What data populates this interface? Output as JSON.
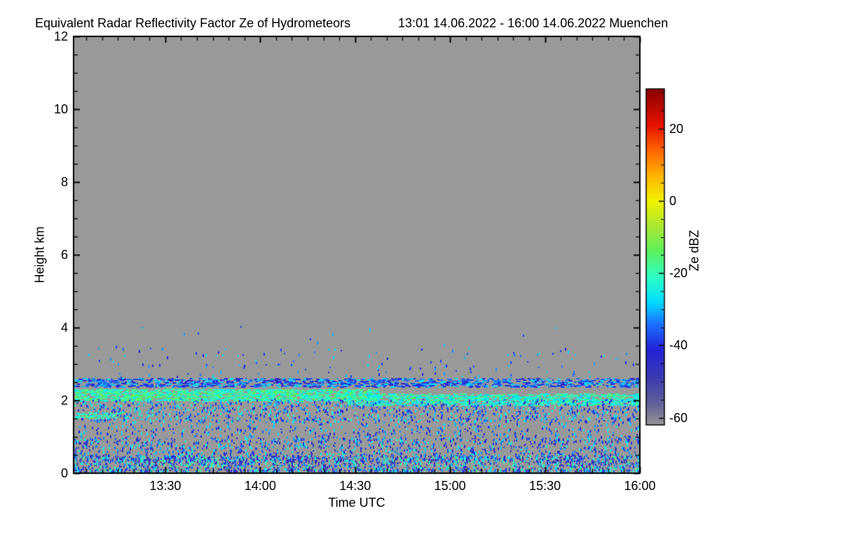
{
  "chart_data": {
    "type": "heatmap",
    "title": "Equivalent Radar Reflectivity Factor Ze of Hydrometeors",
    "subtitle": "13:01 14.06.2022 - 16:00 14.06.2022 Muenchen",
    "xlabel": "Time UTC",
    "ylabel": "Height km",
    "x_start": "13:01",
    "x_end": "16:00",
    "x_total_minutes": 179,
    "x_ticks": [
      {
        "label": "13:30",
        "minute": 29
      },
      {
        "label": "14:00",
        "minute": 59
      },
      {
        "label": "14:30",
        "minute": 89
      },
      {
        "label": "15:00",
        "minute": 119
      },
      {
        "label": "15:30",
        "minute": 149
      },
      {
        "label": "16:00",
        "minute": 179
      }
    ],
    "x_minor_step_minutes": 5,
    "ylim": [
      0,
      12
    ],
    "y_ticks": [
      0,
      2,
      4,
      6,
      8,
      10,
      12
    ],
    "y_minor_step_km": 0.5,
    "grid": false,
    "background": "no-echo gray",
    "plot_bg_color": "#999999",
    "frame_color": "#000000",
    "colorbar": {
      "label": "Ze dBZ",
      "position": "right",
      "tick_values": [
        20,
        0,
        -20,
        -40,
        -60
      ],
      "minor_step": 5,
      "range": [
        -62,
        31
      ],
      "stops": [
        [
          -62,
          "#959595"
        ],
        [
          -56,
          "#60609b"
        ],
        [
          -49,
          "#3b3bb0"
        ],
        [
          -41,
          "#2323da"
        ],
        [
          -34,
          "#1b72ff"
        ],
        [
          -28,
          "#00ddff"
        ],
        [
          -21,
          "#2fffc4"
        ],
        [
          -14,
          "#5cf05c"
        ],
        [
          -7,
          "#aae832"
        ],
        [
          0,
          "#f2f200"
        ],
        [
          7,
          "#ffb400"
        ],
        [
          14,
          "#ff6400"
        ],
        [
          21,
          "#e61200"
        ],
        [
          31,
          "#8a0000"
        ]
      ]
    },
    "echo_bands": [
      {
        "name": "cloud-base-speckle-line",
        "height_km": [
          2.38,
          2.62
        ],
        "time_min": [
          0,
          179
        ],
        "dbz": [
          -46,
          -26
        ],
        "points": 1250,
        "style": "h-dash"
      },
      {
        "name": "green-layer-early",
        "height_km": [
          2.0,
          2.32
        ],
        "time_min": [
          0,
          96
        ],
        "dbz": [
          -27,
          -13
        ],
        "points": 1400,
        "style": "h-dash"
      },
      {
        "name": "green-layer-late",
        "height_km": [
          1.88,
          2.2
        ],
        "time_min": [
          86,
          179
        ],
        "dbz": [
          -29,
          -15
        ],
        "points": 1050,
        "style": "h-dash"
      },
      {
        "name": "mid-level-scatter",
        "height_km": [
          1.45,
          2.05
        ],
        "time_min": [
          0,
          179
        ],
        "dbz": [
          -46,
          -20
        ],
        "points": 1100,
        "style": "v-dash"
      },
      {
        "name": "thin-line-1p6km",
        "height_km": [
          1.52,
          1.68
        ],
        "time_min": [
          0,
          16
        ],
        "dbz": [
          -26,
          -14
        ],
        "points": 60,
        "style": "h-dash"
      },
      {
        "name": "sparse-1to1p5km",
        "height_km": [
          0.95,
          1.5
        ],
        "time_min": [
          0,
          179
        ],
        "dbz": [
          -48,
          -24
        ],
        "points": 520,
        "style": "v-dash"
      },
      {
        "name": "boundary-layer-upper",
        "height_km": [
          0.35,
          0.98
        ],
        "time_min": [
          0,
          179
        ],
        "dbz": [
          -50,
          -22
        ],
        "points": 1250,
        "style": "v-dash"
      },
      {
        "name": "boundary-layer-lower",
        "height_km": [
          0.02,
          0.5
        ],
        "time_min": [
          0,
          179
        ],
        "dbz": [
          -55,
          -16
        ],
        "points": 1900,
        "style": "v-dash"
      },
      {
        "name": "isolated-above-band",
        "height_km": [
          2.65,
          3.45
        ],
        "time_min": [
          0,
          179
        ],
        "dbz": [
          -42,
          -26
        ],
        "points": 130,
        "style": "v-dash"
      },
      {
        "name": "rare-high-dots",
        "height_km": [
          3.45,
          4.05
        ],
        "time_min": [
          0,
          179
        ],
        "dbz": [
          -40,
          -28
        ],
        "points": 12,
        "style": "v-dash"
      }
    ]
  }
}
